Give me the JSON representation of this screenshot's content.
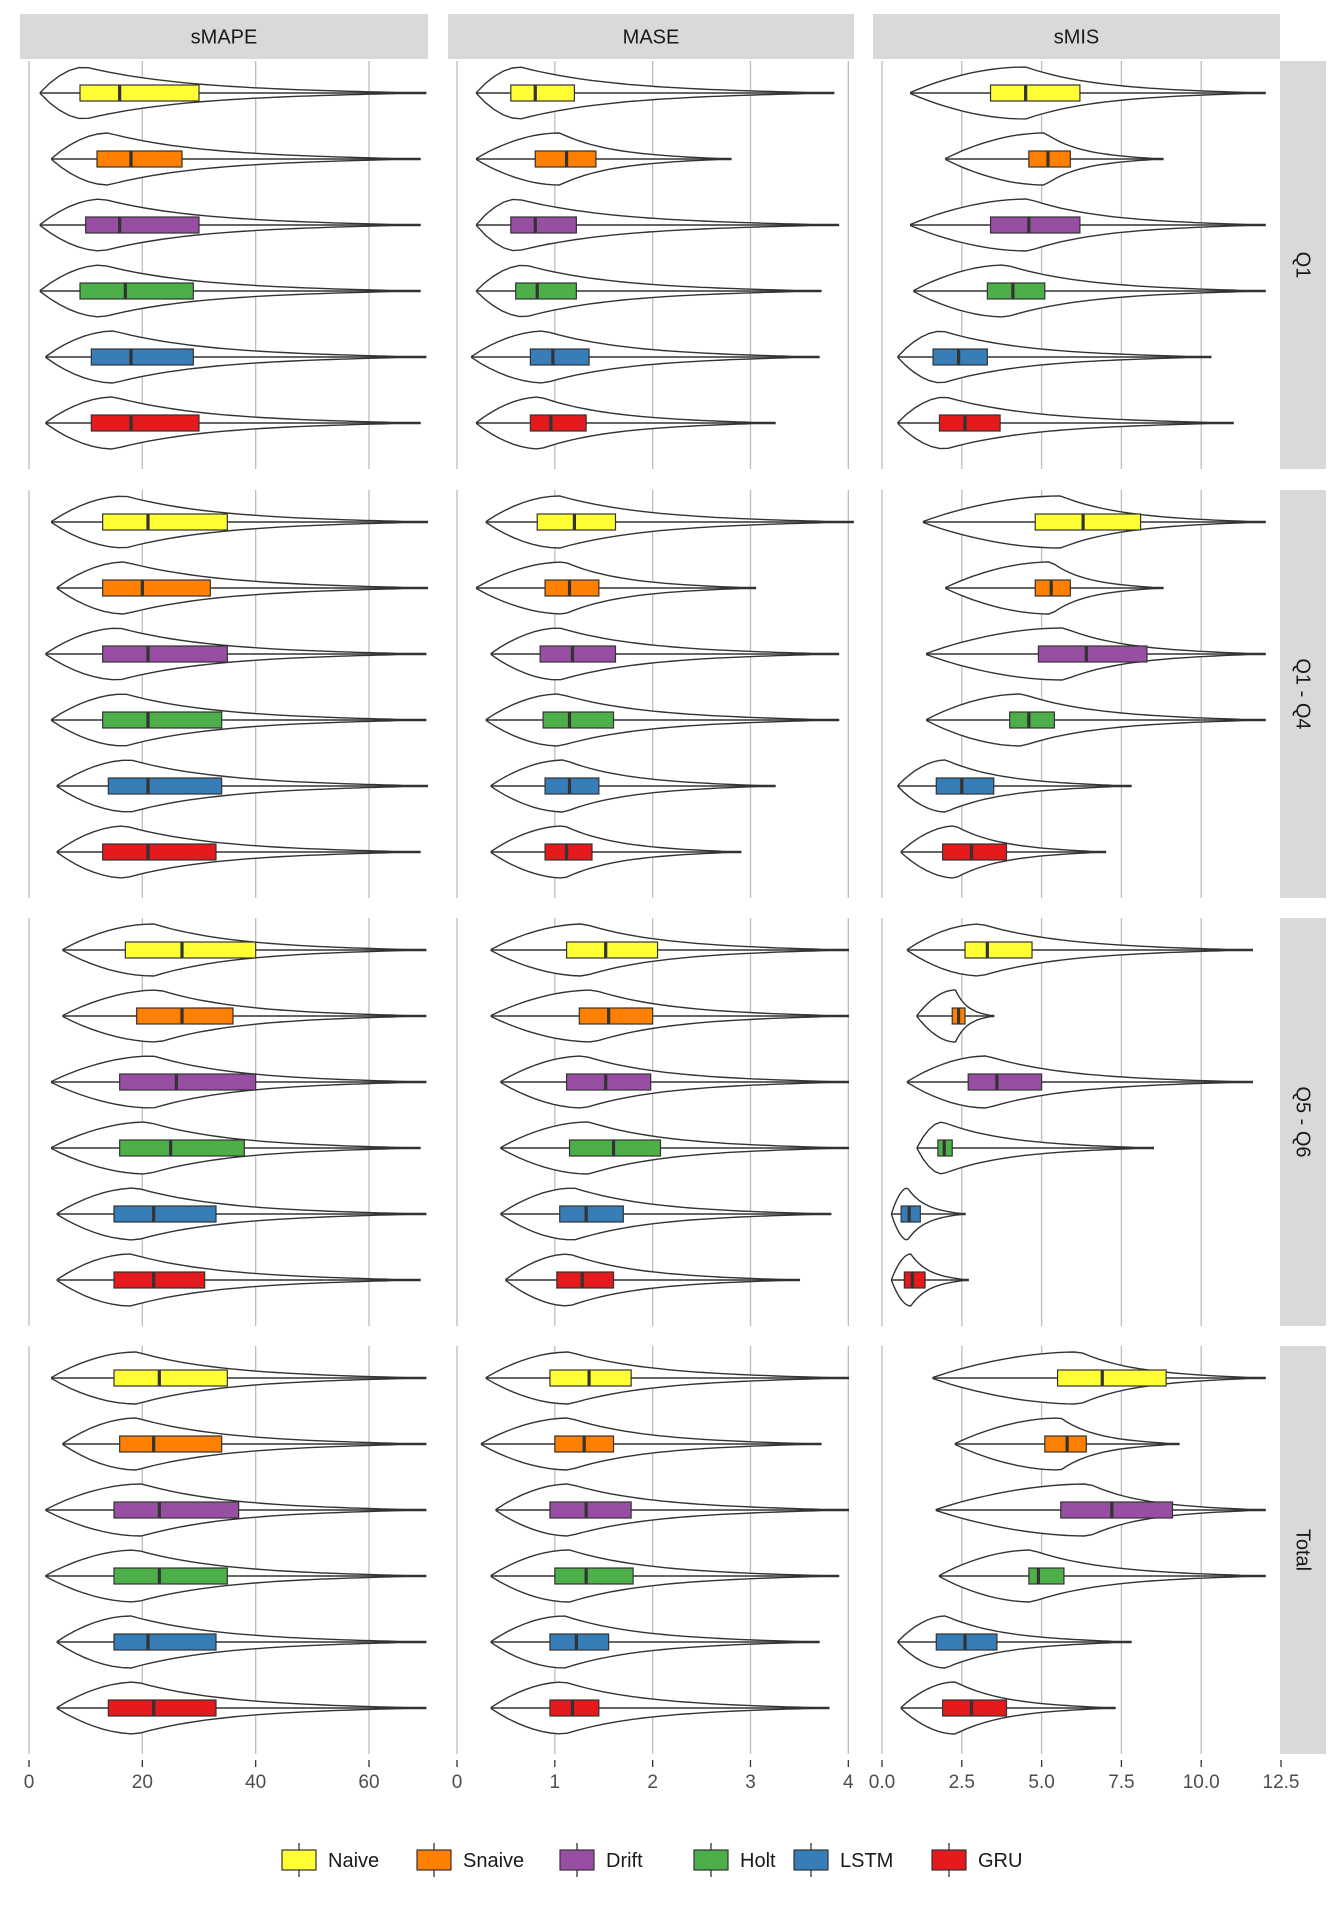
{
  "chart_data": {
    "type": "violin-boxplot",
    "metrics": [
      {
        "name": "sMAPE",
        "ticks": [
          0,
          20,
          40,
          60
        ],
        "tick_labels": [
          "0",
          "20",
          "40",
          "60"
        ],
        "xlim": [
          0,
          72
        ]
      },
      {
        "name": "MASE",
        "ticks": [
          0,
          1,
          2,
          3,
          4
        ],
        "tick_labels": [
          "0",
          "1",
          "2",
          "3",
          "4"
        ],
        "xlim": [
          0,
          4.15
        ]
      },
      {
        "name": "sMIS",
        "ticks": [
          0,
          2.5,
          5,
          7.5,
          10,
          12.5
        ],
        "tick_labels": [
          "0.0",
          "2.5",
          "5.0",
          "7.5",
          "10.0",
          "12.5"
        ],
        "xlim": [
          0,
          12.75
        ]
      }
    ],
    "rows": [
      "Q1",
      "Q1 - Q4",
      "Q5 - Q6",
      "Total"
    ],
    "models": [
      {
        "name": "Naive",
        "color": "#ffff33"
      },
      {
        "name": "Snaive",
        "color": "#ff7f00"
      },
      {
        "name": "Drift",
        "color": "#984ea3"
      },
      {
        "name": "Holt",
        "color": "#4daf4a"
      },
      {
        "name": "LSTM",
        "color": "#377eb8"
      },
      {
        "name": "GRU",
        "color": "#e41a1c"
      }
    ],
    "grid": true,
    "legend_position": "bottom",
    "panels": {
      "Q1": {
        "sMAPE": [
          [
            2,
            9,
            16,
            30,
            70,
            10
          ],
          [
            4,
            12,
            18,
            27,
            69,
            14
          ],
          [
            2,
            10,
            16,
            30,
            69,
            13
          ],
          [
            2,
            9,
            17,
            29,
            69,
            13
          ],
          [
            3,
            11,
            18,
            29,
            70,
            15
          ],
          [
            3,
            11,
            18,
            30,
            69,
            15
          ]
        ],
        "MASE": [
          [
            0.2,
            0.55,
            0.8,
            1.2,
            3.85,
            0.65
          ],
          [
            0.2,
            0.8,
            1.12,
            1.42,
            2.8,
            1.05
          ],
          [
            0.2,
            0.55,
            0.8,
            1.22,
            3.9,
            0.62
          ],
          [
            0.2,
            0.6,
            0.82,
            1.22,
            3.72,
            0.7
          ],
          [
            0.15,
            0.75,
            0.98,
            1.35,
            3.7,
            0.9
          ],
          [
            0.2,
            0.75,
            0.96,
            1.32,
            3.25,
            0.85
          ]
        ],
        "sMIS": [
          [
            0.9,
            3.4,
            4.5,
            6.2,
            12.0,
            4.5
          ],
          [
            2.0,
            4.6,
            5.2,
            5.9,
            8.8,
            5.1
          ],
          [
            0.9,
            3.4,
            4.6,
            6.2,
            12.0,
            4.6
          ],
          [
            1.0,
            3.3,
            4.1,
            5.1,
            12.0,
            3.9
          ],
          [
            0.5,
            1.6,
            2.4,
            3.3,
            10.3,
            1.9
          ],
          [
            0.5,
            1.8,
            2.6,
            3.7,
            11.0,
            2.0
          ]
        ]
      },
      "Q1 - Q4": {
        "sMAPE": [
          [
            4,
            13,
            21,
            35,
            71,
            17
          ],
          [
            5,
            13,
            20,
            32,
            71,
            17
          ],
          [
            3,
            13,
            21,
            35,
            70,
            16
          ],
          [
            4,
            13,
            21,
            34,
            70,
            17
          ],
          [
            5,
            14,
            21,
            34,
            71,
            18
          ],
          [
            5,
            13,
            21,
            33,
            69,
            17
          ]
        ],
        "MASE": [
          [
            0.3,
            0.82,
            1.2,
            1.62,
            4.05,
            1.05
          ],
          [
            0.2,
            0.9,
            1.15,
            1.45,
            3.05,
            1.1
          ],
          [
            0.35,
            0.85,
            1.18,
            1.62,
            3.9,
            1.05
          ],
          [
            0.3,
            0.88,
            1.15,
            1.6,
            3.9,
            1.05
          ],
          [
            0.35,
            0.9,
            1.15,
            1.45,
            3.25,
            1.1
          ],
          [
            0.35,
            0.9,
            1.12,
            1.38,
            2.9,
            1.1
          ]
        ],
        "sMIS": [
          [
            1.3,
            4.8,
            6.3,
            8.1,
            12.0,
            5.6
          ],
          [
            2.0,
            4.8,
            5.3,
            5.9,
            8.8,
            5.3
          ],
          [
            1.4,
            4.9,
            6.4,
            8.3,
            12.0,
            5.7
          ],
          [
            1.4,
            4.0,
            4.6,
            5.4,
            12.0,
            4.4
          ],
          [
            0.5,
            1.7,
            2.5,
            3.5,
            7.8,
            2.0
          ],
          [
            0.6,
            1.9,
            2.8,
            3.9,
            7.0,
            2.3
          ]
        ]
      },
      "Q5 - Q6": {
        "sMAPE": [
          [
            6,
            17,
            27,
            40,
            70,
            22
          ],
          [
            6,
            19,
            27,
            36,
            70,
            23
          ],
          [
            4,
            16,
            26,
            40,
            70,
            22
          ],
          [
            4,
            16,
            25,
            38,
            69,
            21
          ],
          [
            5,
            15,
            22,
            33,
            70,
            19
          ],
          [
            5,
            15,
            22,
            31,
            69,
            18
          ]
        ],
        "MASE": [
          [
            0.35,
            1.12,
            1.52,
            2.05,
            4.0,
            1.3
          ],
          [
            0.35,
            1.25,
            1.55,
            2.0,
            4.0,
            1.4
          ],
          [
            0.45,
            1.12,
            1.52,
            1.98,
            4.0,
            1.3
          ],
          [
            0.45,
            1.15,
            1.6,
            2.08,
            4.0,
            1.35
          ],
          [
            0.45,
            1.05,
            1.32,
            1.7,
            3.82,
            1.2
          ],
          [
            0.5,
            1.02,
            1.28,
            1.6,
            3.5,
            1.15
          ]
        ],
        "sMIS": [
          [
            0.8,
            2.6,
            3.3,
            4.7,
            11.6,
            3.1
          ],
          [
            1.1,
            2.2,
            2.4,
            2.6,
            3.5,
            2.3
          ],
          [
            0.8,
            2.7,
            3.6,
            5.0,
            11.6,
            3.3
          ],
          [
            1.1,
            1.75,
            1.95,
            2.2,
            8.5,
            1.9
          ],
          [
            0.3,
            0.6,
            0.85,
            1.2,
            2.6,
            0.8
          ],
          [
            0.3,
            0.7,
            0.95,
            1.35,
            2.7,
            0.9
          ]
        ]
      },
      "Total": {
        "sMAPE": [
          [
            4,
            15,
            23,
            35,
            70,
            19
          ],
          [
            6,
            16,
            22,
            34,
            70,
            19
          ],
          [
            3,
            15,
            23,
            37,
            70,
            20
          ],
          [
            3,
            15,
            23,
            35,
            70,
            19
          ],
          [
            5,
            15,
            21,
            33,
            70,
            18
          ],
          [
            5,
            14,
            22,
            33,
            70,
            19
          ]
        ],
        "MASE": [
          [
            0.3,
            0.95,
            1.35,
            1.78,
            4.0,
            1.15
          ],
          [
            0.25,
            1.0,
            1.3,
            1.6,
            3.72,
            1.15
          ],
          [
            0.4,
            0.95,
            1.32,
            1.78,
            4.0,
            1.15
          ],
          [
            0.35,
            1.0,
            1.32,
            1.8,
            3.9,
            1.15
          ],
          [
            0.35,
            0.95,
            1.22,
            1.55,
            3.7,
            1.1
          ],
          [
            0.35,
            0.95,
            1.18,
            1.45,
            3.8,
            1.1
          ]
        ],
        "sMIS": [
          [
            1.6,
            5.5,
            6.9,
            8.9,
            12.0,
            6.2
          ],
          [
            2.3,
            5.1,
            5.8,
            6.4,
            9.3,
            5.6
          ],
          [
            1.7,
            5.6,
            7.2,
            9.1,
            12.0,
            6.5
          ],
          [
            1.8,
            4.6,
            4.9,
            5.7,
            12.0,
            4.7
          ],
          [
            0.5,
            1.7,
            2.6,
            3.6,
            7.8,
            2.0
          ],
          [
            0.6,
            1.9,
            2.8,
            3.9,
            7.3,
            2.3
          ]
        ]
      }
    }
  }
}
